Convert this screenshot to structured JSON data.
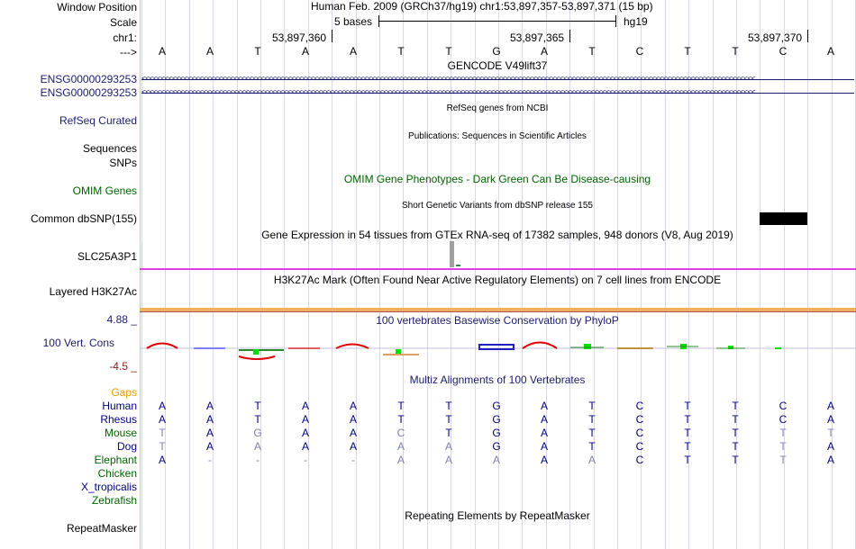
{
  "header": {
    "window_position_label": "Window Position",
    "scale_label": "Scale",
    "chrom_label": "chr1:",
    "arrow_label": "--->",
    "window_text": "Human Feb. 2009 (GRCh37/hg19)   chr1:53,897,357-53,897,371 (15 bp)",
    "scale_text": "5 bases",
    "assembly": "hg19",
    "ruler_positions": [
      "53,897,360",
      "53,897,365",
      "53,897,370"
    ]
  },
  "bases": [
    "A",
    "A",
    "T",
    "A",
    "A",
    "T",
    "T",
    "G",
    "A",
    "T",
    "C",
    "T",
    "T",
    "C",
    "A"
  ],
  "tracks": {
    "gencode_title": "GENCODE V49lift37",
    "gencode_items": [
      "ENSG00000293253",
      "ENSG00000293253"
    ],
    "refseq_label": "RefSeq Curated",
    "refseq_title": "RefSeq genes from NCBI",
    "sequences_label": "Sequences",
    "publications_title": "Publications: Sequences in Scientific Articles",
    "snps_label": "SNPs",
    "omim_title": "OMIM Gene Phenotypes - Dark Green Can Be Disease-causing",
    "omim_label": "OMIM Genes",
    "dbsnp_title": "Short Genetic Variants from dbSNP release 155",
    "dbsnp_label": "Common dbSNP(155)",
    "gtex_title": "Gene Expression in 54 tissues from GTEx RNA-seq of 17382 samples, 948 donors (V8, Aug 2019)",
    "gtex_label": "SLC25A3P1",
    "h3k27ac_title": "H3K27Ac Mark (Often Found Near Active Regulatory Elements) on 7 cell lines from ENCODE",
    "h3k27ac_label": "Layered H3K27Ac",
    "phylop_title": "100 vertebrates Basewise Conservation by PhyloP",
    "phylop_label": "100 Vert. Cons",
    "phylop_max": "4.88 _",
    "phylop_min": "-4.5 _",
    "multiz_title": "Multiz Alignments of 100 Vertebrates",
    "gaps_label": "Gaps",
    "repeatmasker_title": "Repeating Elements by RepeatMasker",
    "repeatmasker_label": "RepeatMasker"
  },
  "alignment": [
    {
      "species": "Human",
      "color": "#000080",
      "bases": [
        "A",
        "A",
        "T",
        "A",
        "A",
        "T",
        "T",
        "G",
        "A",
        "T",
        "C",
        "T",
        "T",
        "C",
        "A"
      ]
    },
    {
      "species": "Rhesus",
      "color": "#000080",
      "bases": [
        "A",
        "A",
        "T",
        "A",
        "A",
        "T",
        "T",
        "G",
        "A",
        "T",
        "C",
        "T",
        "T",
        "C",
        "A"
      ]
    },
    {
      "species": "Mouse",
      "color": "#006400",
      "bases": [
        "T",
        "A",
        "G",
        "A",
        "A",
        "C",
        "T",
        "G",
        "A",
        "T",
        "C",
        "T",
        "T",
        "T",
        "T"
      ]
    },
    {
      "species": "Dog",
      "color": "#000080",
      "bases": [
        "T",
        "A",
        "A",
        "A",
        "A",
        "A",
        "A",
        "G",
        "A",
        "T",
        "C",
        "T",
        "T",
        "T",
        "A"
      ]
    },
    {
      "species": "Elephant",
      "color": "#006400",
      "bases": [
        "A",
        "-",
        "-",
        "-",
        "-",
        "A",
        "A",
        "A",
        "A",
        "A",
        "C",
        "T",
        "T",
        "T",
        "A"
      ]
    },
    {
      "species": "Chicken",
      "color": "#006400",
      "bases": []
    },
    {
      "species": "X_tropicalis",
      "color": "#000080",
      "bases": []
    },
    {
      "species": "Zebrafish",
      "color": "#006400",
      "bases": []
    }
  ],
  "colors": {
    "label_blue": "#1a1a6e",
    "label_green": "#006400",
    "gaps_orange": "#e8a000",
    "h3k27ac_magenta": "#e040e0",
    "phylop_orange": "#f0b060",
    "minus_red": "#8b1a1a"
  },
  "icons": [
    "strand-arrow-left-icon"
  ]
}
